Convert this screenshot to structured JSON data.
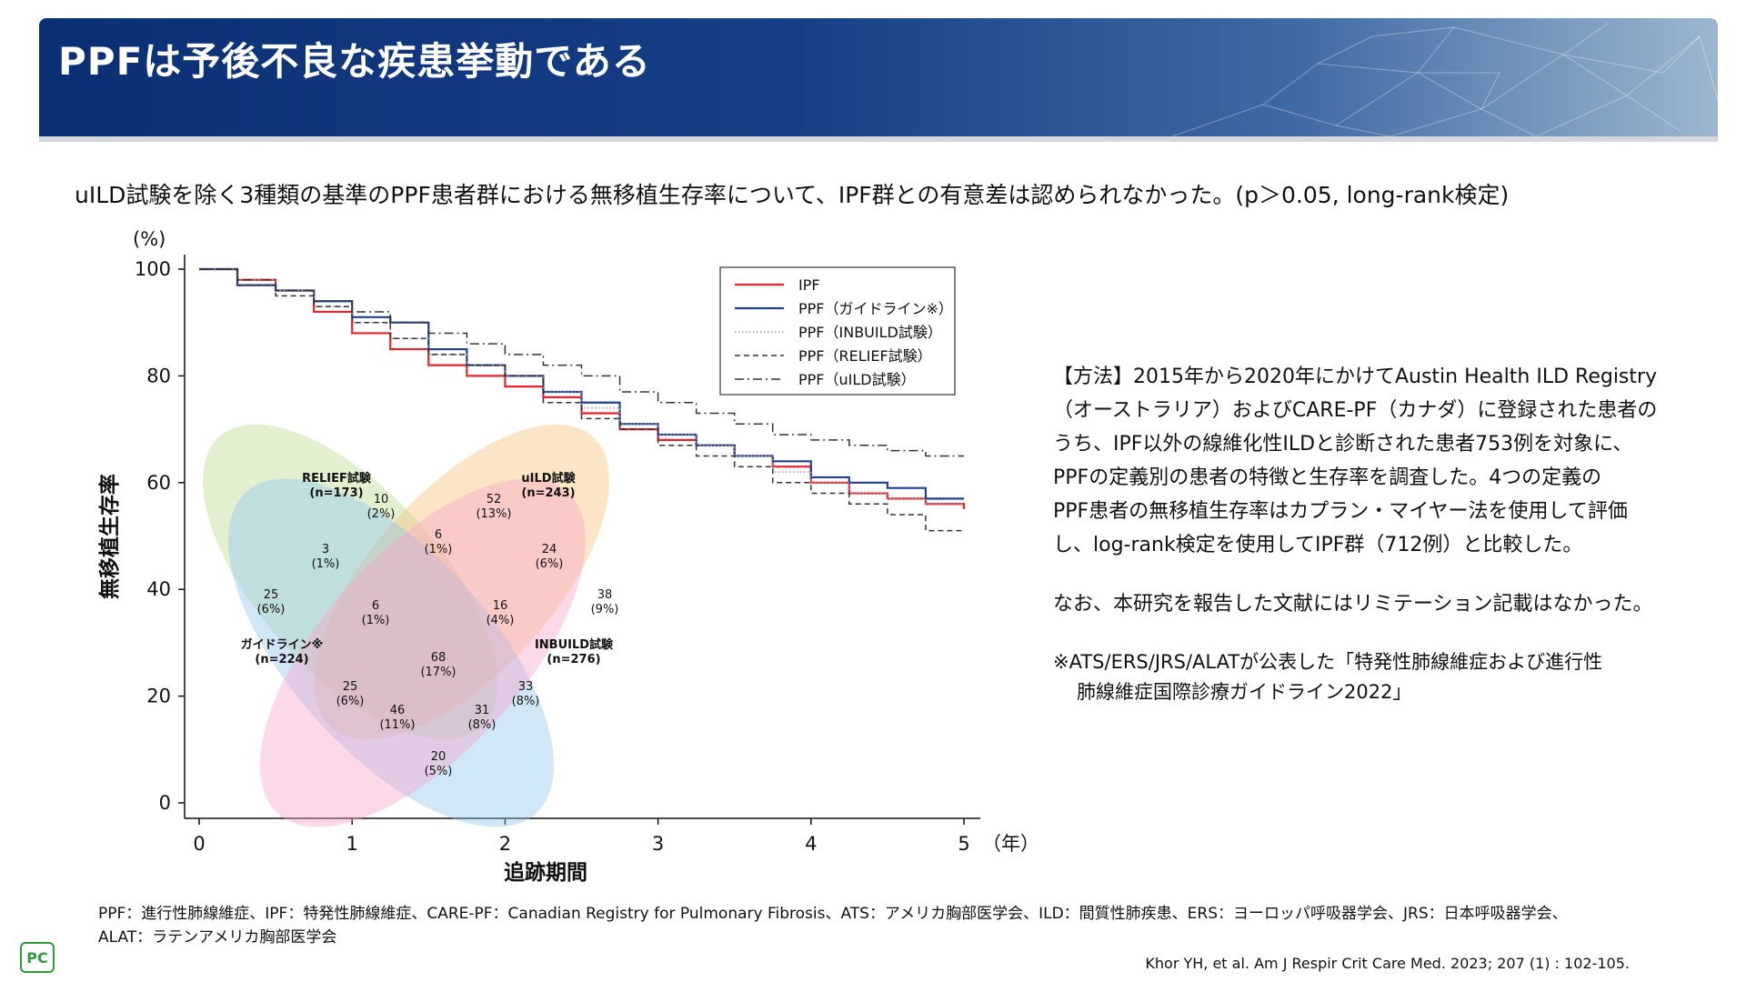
{
  "slide": {
    "title": "PPFは予後不良な疾患挙動である",
    "subtitle": "uILD試験を除く3種類の基準のPPF患者群における無移植生存率について、IPF群との有意差は認められなかった。(p＞0.05,  long-rank検定)",
    "method_lines": [
      "【方法】2015年から2020年にかけてAustin Health ILD Registry",
      "（オーストラリア）およびCARE-PF（カナダ）に登録された患者の",
      "うち、IPF以外の線維化性ILDと診断された患者753例を対象に、",
      "PPFの定義別の患者の特徴と生存率を調査した。4つの定義の",
      "PPF患者の無移植生存率はカプラン・マイヤー法を使用して評価",
      "し、log-rank検定を使用してIPF群（712例）と比較した。"
    ],
    "limitation": "なお、本研究を報告した文献にはリミテーション記載はなかった。",
    "footnote_line1": "※ATS/ERS/JRS/ALATが公表した「特発性肺線維症および進行性",
    "footnote_line2": "肺線維症国際診療ガイドライン2022」",
    "abbr_line1": "PPF：進行性肺線維症、IPF：特発性肺線維症、CARE-PF：Canadian Registry for Pulmonary Fibrosis、ATS：アメリカ胸部医学会、ILD：間質性肺疾患、ERS：ヨーロッパ呼吸器学会、JRS：日本呼吸器学会、",
    "abbr_line2": "ALAT：ラテンアメリカ胸部医学会",
    "citation": "Khor YH, et al. Am J Respir Crit Care Med. 2023; 207 (1) :  102-105.",
    "logo_text": "PC"
  },
  "chart_data": [
    {
      "type": "line",
      "ylabel": "無移植生存率",
      "y_unit": "(%)",
      "xlabel": "追跡期間",
      "x_unit": "（年）",
      "xlim": [
        0,
        5
      ],
      "ylim": [
        0,
        100
      ],
      "x_ticks": [
        0,
        1,
        2,
        3,
        4,
        5
      ],
      "y_ticks": [
        0,
        20,
        40,
        60,
        80,
        100
      ],
      "legend_position": "top-right",
      "series": [
        {
          "name": "IPF",
          "color": "#e8212a",
          "style": "solid",
          "x": [
            0,
            0.25,
            0.5,
            0.75,
            1,
            1.25,
            1.5,
            1.75,
            2,
            2.25,
            2.5,
            2.75,
            3,
            3.25,
            3.5,
            3.75,
            4,
            4.25,
            4.5,
            4.75,
            5
          ],
          "y": [
            100,
            98,
            96,
            92,
            88,
            85,
            82,
            80,
            78,
            76,
            73,
            70,
            68,
            67,
            65,
            63,
            60,
            58,
            57,
            56,
            55
          ]
        },
        {
          "name": "PPF（ガイドライン※）",
          "color": "#1f3f8f",
          "style": "solid",
          "x": [
            0,
            0.25,
            0.5,
            0.75,
            1,
            1.25,
            1.5,
            1.75,
            2,
            2.25,
            2.5,
            2.75,
            3,
            3.25,
            3.5,
            3.75,
            4,
            4.25,
            4.5,
            4.75,
            5
          ],
          "y": [
            100,
            97,
            96,
            94,
            91,
            90,
            85,
            82,
            80,
            77,
            75,
            71,
            69,
            67,
            65,
            64,
            61,
            60,
            59,
            57,
            57
          ]
        },
        {
          "name": "PPF（INBUILD試験）",
          "color": "#9a9a9a",
          "style": "dotted",
          "x": [
            0,
            0.25,
            0.5,
            0.75,
            1,
            1.25,
            1.5,
            1.75,
            2,
            2.25,
            2.5,
            2.75,
            3,
            3.25,
            3.5,
            3.75,
            4,
            4.25,
            4.5,
            4.75,
            5
          ],
          "y": [
            100,
            98,
            96,
            93,
            90,
            87,
            84,
            82,
            80,
            77,
            74,
            71,
            69,
            67,
            65,
            62,
            60,
            58,
            57,
            56,
            56
          ]
        },
        {
          "name": "PPF（RELIEF試験）",
          "color": "#333333",
          "style": "dashed",
          "x": [
            0,
            0.25,
            0.5,
            0.75,
            1,
            1.25,
            1.5,
            1.75,
            2,
            2.25,
            2.5,
            2.75,
            3,
            3.25,
            3.5,
            3.75,
            4,
            4.25,
            4.5,
            4.75,
            5
          ],
          "y": [
            100,
            97,
            95,
            93,
            90,
            87,
            84,
            82,
            80,
            75,
            72,
            70,
            67,
            65,
            63,
            60,
            58,
            56,
            54,
            51,
            51
          ]
        },
        {
          "name": "PPF（uILD試験）",
          "color": "#333333",
          "style": "dashdot",
          "x": [
            0,
            0.25,
            0.5,
            0.75,
            1,
            1.25,
            1.5,
            1.75,
            2,
            2.25,
            2.5,
            2.75,
            3,
            3.25,
            3.5,
            3.75,
            4,
            4.25,
            4.5,
            4.75,
            5
          ],
          "y": [
            100,
            98,
            96,
            94,
            92,
            90,
            88,
            86,
            84,
            82,
            80,
            77,
            75,
            73,
            71,
            69,
            68,
            67,
            66,
            65,
            65
          ]
        }
      ]
    },
    {
      "type": "venn",
      "sets": [
        {
          "label": "RELIEF試験",
          "n": "(n=173)",
          "color": "#b9dc8f"
        },
        {
          "label": "uILD試験",
          "n": "(n=243)",
          "color": "#f8c07a"
        },
        {
          "label": "ガイドライン※",
          "n": "(n=224)",
          "color": "#90c6ee"
        },
        {
          "label": "INBUILD試験",
          "n": "(n=276)",
          "color": "#f7a4c9"
        }
      ],
      "regions": [
        {
          "count": "10",
          "pct": "(2%)"
        },
        {
          "count": "52",
          "pct": "(13%)"
        },
        {
          "count": "6",
          "pct": "(1%)"
        },
        {
          "count": "3",
          "pct": "(1%)"
        },
        {
          "count": "24",
          "pct": "(6%)"
        },
        {
          "count": "25",
          "pct": "(6%)"
        },
        {
          "count": "6",
          "pct": "(1%)"
        },
        {
          "count": "16",
          "pct": "(4%)"
        },
        {
          "count": "38",
          "pct": "(9%)"
        },
        {
          "count": "68",
          "pct": "(17%)"
        },
        {
          "count": "25",
          "pct": "(6%)"
        },
        {
          "count": "33",
          "pct": "(8%)"
        },
        {
          "count": "46",
          "pct": "(11%)"
        },
        {
          "count": "31",
          "pct": "(8%)"
        },
        {
          "count": "20",
          "pct": "(5%)"
        }
      ]
    }
  ]
}
